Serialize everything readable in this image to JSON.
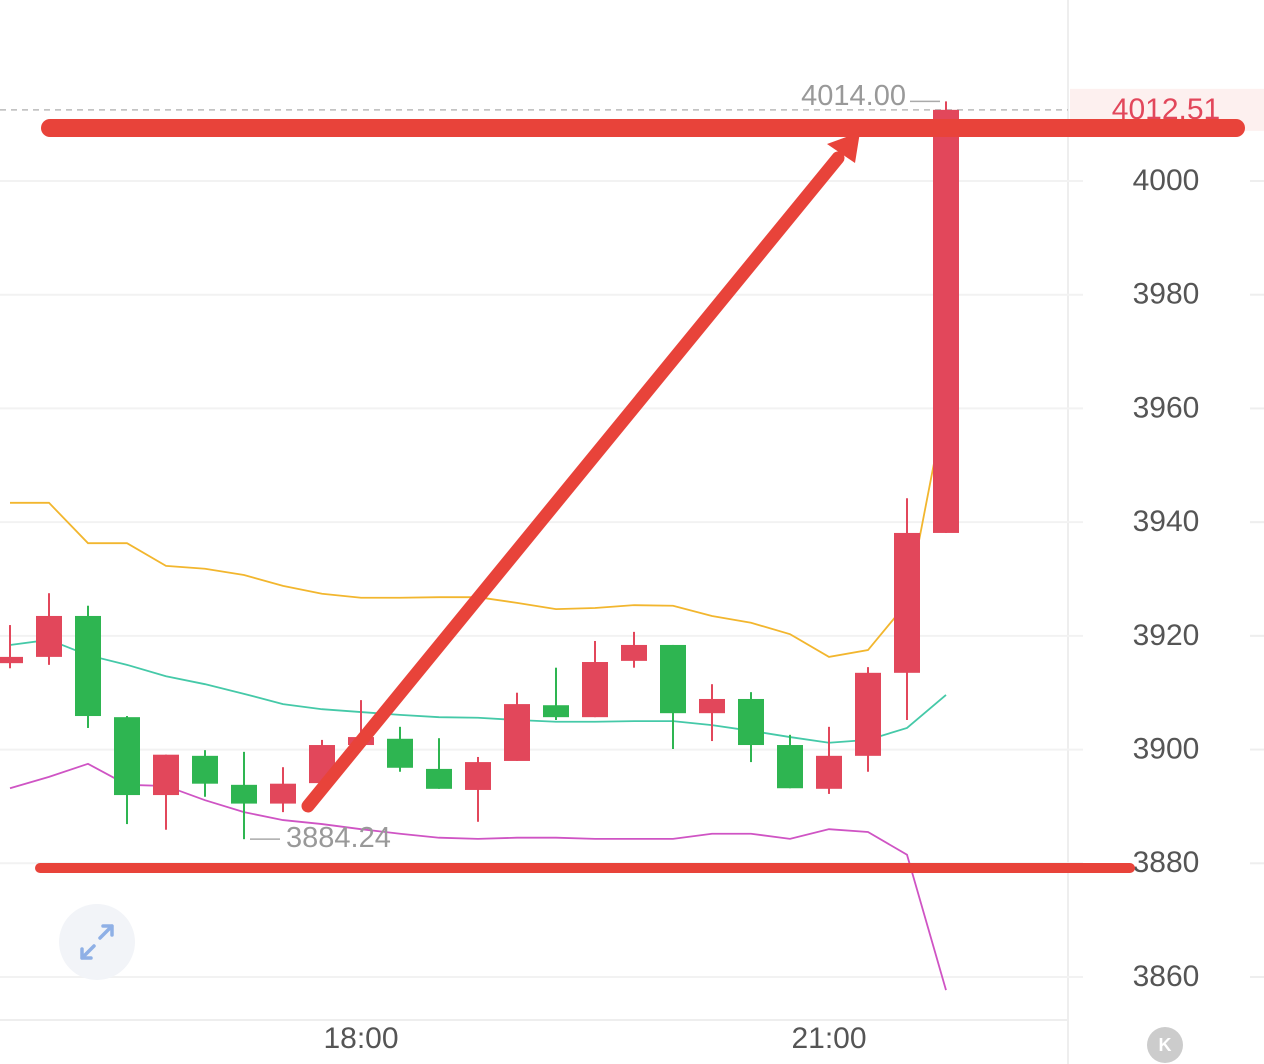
{
  "chart_data": {
    "type": "candlestick",
    "categories": [
      null,
      null,
      null,
      null,
      null,
      null,
      null,
      null,
      null,
      "18:00",
      null,
      null,
      null,
      null,
      null,
      null,
      null,
      null,
      null,
      null,
      null,
      "21:00",
      null,
      null,
      null
    ],
    "open": [
      3915.2,
      3916.3,
      3923.5,
      3905.7,
      3892.0,
      3898.9,
      3893.8,
      3890.5,
      3894.1,
      3900.8,
      3901.9,
      3896.6,
      3892.9,
      3898.0,
      3907.8,
      3905.7,
      3915.6,
      3918.4,
      3906.4,
      3908.9,
      3900.8,
      3893.1,
      3898.9,
      3913.5,
      3938.1
    ],
    "high": [
      3921.9,
      3927.5,
      3925.3,
      3905.9,
      3899.1,
      3899.9,
      3899.6,
      3896.9,
      3901.7,
      3908.7,
      3904.0,
      3902.0,
      3898.7,
      3910.0,
      3914.4,
      3919.1,
      3920.7,
      3918.4,
      3911.5,
      3910.1,
      3902.6,
      3904.0,
      3914.5,
      3944.2,
      4014
    ],
    "low": [
      3914.3,
      3914.9,
      3903.8,
      3886.9,
      3885.9,
      3891.7,
      3884.24,
      3889.0,
      3892.9,
      3900.8,
      3896.1,
      3893.1,
      3887.3,
      3898.0,
      3905.2,
      3905.7,
      3914.4,
      3900.1,
      3901.5,
      3897.8,
      3893.2,
      3892.2,
      3896.1,
      3905.2,
      3938.1
    ],
    "close": [
      3916.3,
      3923.5,
      3905.9,
      3892.0,
      3899.1,
      3894.0,
      3890.5,
      3894.0,
      3900.8,
      3902.2,
      3896.8,
      3893.1,
      3897.8,
      3908.0,
      3905.7,
      3915.4,
      3918.4,
      3906.4,
      3908.9,
      3900.8,
      3893.2,
      3898.9,
      3913.5,
      3938.1,
      4012.51
    ],
    "up_color": "#e2475b",
    "down_color": "#2eb551",
    "overlays": [
      {
        "color": "#f2b62e",
        "values": [
          3943.4,
          3943.4,
          3936.3,
          3936.3,
          3932.3,
          3931.8,
          3930.7,
          3928.8,
          3927.4,
          3926.7,
          3926.7,
          3926.8,
          3926.8,
          3925.8,
          3924.7,
          3924.9,
          3925.4,
          3925.3,
          3923.5,
          3922.3,
          3920.3,
          3916.3,
          3917.5,
          3925.8,
          3961.3
        ]
      },
      {
        "color": "#45c9a8",
        "values": [
          3918.4,
          3919.3,
          3916.6,
          3914.9,
          3912.9,
          3911.5,
          3909.8,
          3908.0,
          3907.1,
          3906.6,
          3906.1,
          3905.7,
          3905.6,
          3905.2,
          3904.9,
          3904.9,
          3905.0,
          3905.0,
          3904.3,
          3903.3,
          3902.2,
          3901.2,
          3901.7,
          3903.8,
          3909.6
        ]
      },
      {
        "color": "#cf54c4",
        "values": [
          3893.2,
          3895.2,
          3897.5,
          3893.8,
          3893.6,
          3891.1,
          3889.0,
          3887.6,
          3886.9,
          3886.0,
          3885.2,
          3884.5,
          3884.3,
          3884.5,
          3884.5,
          3884.3,
          3884.3,
          3884.3,
          3885.2,
          3885.2,
          3884.3,
          3886.0,
          3885.5,
          3881.5,
          3857.7
        ]
      }
    ],
    "ylim": [
      3852.44,
      4031.83
    ],
    "yticks": [
      3860,
      3880,
      3900,
      3920,
      3940,
      3960,
      3980,
      4000
    ],
    "grid": true,
    "markers": {
      "high": {
        "value": 4014,
        "label": "4014.00"
      },
      "low": {
        "value": 3884.24,
        "label": "3884.24"
      },
      "last": {
        "value": 4012.51,
        "label": "4012.51"
      }
    }
  },
  "toolbar": {
    "k_button": "K"
  }
}
